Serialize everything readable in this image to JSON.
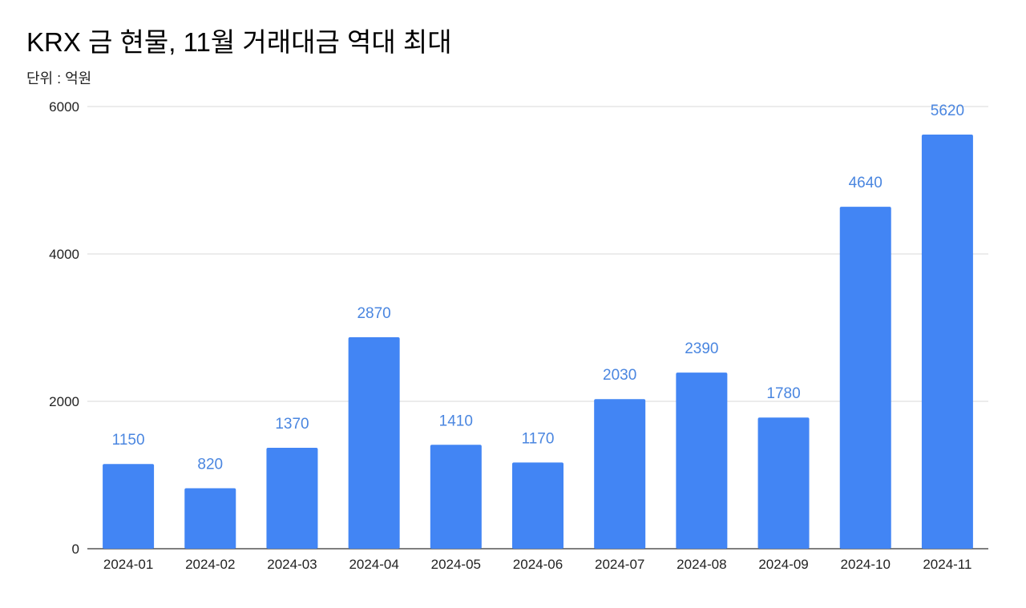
{
  "title": "KRX 금 현물, 11월 거래대금 역대 최대",
  "subtitle": "단위 : 억원",
  "colors": {
    "bar": "#4285f4",
    "data_label": "#4a86e0",
    "grid": "#d9d9d9",
    "axis": "#333333"
  },
  "chart_data": {
    "type": "bar",
    "title": "KRX 금 현물, 11월 거래대금 역대 최대",
    "subtitle": "단위 : 억원",
    "xlabel": "",
    "ylabel": "",
    "categories": [
      "2024-01",
      "2024-02",
      "2024-03",
      "2024-04",
      "2024-05",
      "2024-06",
      "2024-07",
      "2024-08",
      "2024-09",
      "2024-10",
      "2024-11"
    ],
    "values": [
      1150,
      820,
      1370,
      2870,
      1410,
      1170,
      2030,
      2390,
      1780,
      4640,
      5620
    ],
    "ylim": [
      0,
      6000
    ],
    "yticks": [
      0,
      2000,
      4000,
      6000
    ],
    "grid": true,
    "legend": "none",
    "data_labels": true
  }
}
